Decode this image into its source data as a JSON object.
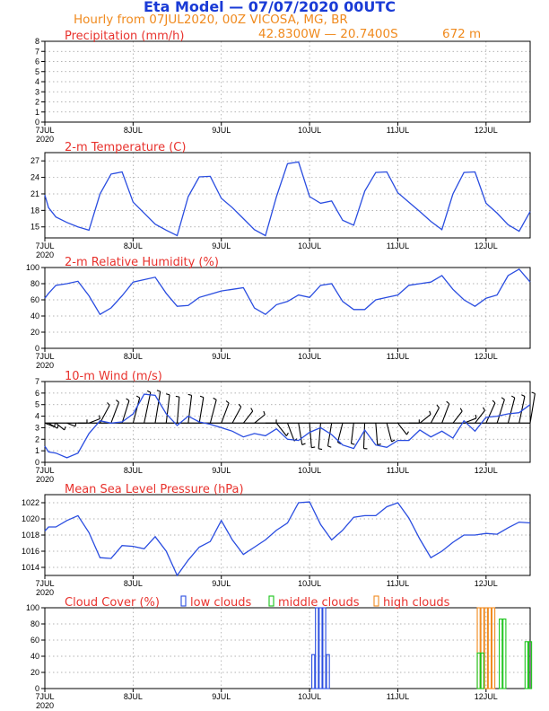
{
  "header": {
    "model_title": "Eta Model — 07/07/2020 00UTC",
    "hourly_line": "Hourly from 07JUL2020, 00Z   VICOSA, MG, BR",
    "coords_line": "42.8300W  —  20.7400S",
    "elevation": "672  m"
  },
  "colors": {
    "frame": "#000000",
    "grid": "#9a9a9a",
    "title_red": "#e8322d",
    "line_blue": "#2a4de0",
    "low_clouds": "#2a4de0",
    "middle_clouds": "#19c419",
    "high_clouds": "#f08a1e"
  },
  "x_axis": {
    "day_labels": [
      "7JUL",
      "8JUL",
      "9JUL",
      "10JUL",
      "11JUL",
      "12JUL"
    ],
    "year_label": "2020",
    "range_hours": [
      0,
      132
    ]
  },
  "chart_data": [
    {
      "id": "precip",
      "type": "line",
      "title": "Precipitation (mm/h)",
      "ylim": [
        0,
        8
      ],
      "yticks": [
        0,
        1,
        2,
        3,
        4,
        5,
        6,
        7,
        8
      ],
      "hgrid": [
        1,
        2,
        3,
        4,
        5,
        6,
        7
      ],
      "x": [],
      "values": []
    },
    {
      "id": "temp",
      "type": "line",
      "title": "2-m Temperature (C)",
      "ylim": [
        13,
        28.5
      ],
      "yticks": [
        15,
        18,
        21,
        24,
        27
      ],
      "hgrid": [
        15,
        18,
        21,
        24,
        27
      ],
      "x": [
        0,
        1,
        3,
        6,
        9,
        12,
        15,
        18,
        21,
        24,
        27,
        30,
        33,
        36,
        39,
        42,
        45,
        48,
        51,
        54,
        57,
        60,
        63,
        66,
        69,
        72,
        75,
        78,
        81,
        84,
        87,
        90,
        93,
        96,
        99,
        102,
        105,
        108,
        111,
        114,
        117,
        120,
        123,
        126,
        129,
        132
      ],
      "values": [
        20.8,
        18.5,
        16.8,
        15.8,
        15.0,
        14.4,
        21.0,
        24.6,
        25.0,
        19.5,
        17.5,
        15.5,
        14.4,
        13.4,
        20.5,
        24.1,
        24.2,
        20.2,
        18.5,
        16.5,
        14.5,
        13.4,
        20.5,
        26.5,
        26.8,
        20.5,
        19.3,
        19.7,
        16.2,
        15.3,
        21.5,
        24.9,
        25.0,
        21.2,
        19.5,
        17.8,
        16.0,
        14.5,
        21.0,
        24.9,
        25.0,
        19.3,
        17.5,
        15.4,
        14.2,
        17.8
      ]
    },
    {
      "id": "rh",
      "type": "line",
      "title": "2-m Relative Humidity (%)",
      "ylim": [
        0,
        100
      ],
      "yticks": [
        0,
        20,
        40,
        60,
        80,
        100
      ],
      "hgrid": [
        20,
        40,
        60,
        80
      ],
      "x": [
        0,
        1,
        3,
        6,
        9,
        12,
        15,
        18,
        21,
        24,
        27,
        30,
        33,
        36,
        39,
        42,
        45,
        48,
        51,
        54,
        57,
        60,
        63,
        66,
        69,
        72,
        75,
        78,
        81,
        84,
        87,
        90,
        93,
        96,
        99,
        102,
        105,
        108,
        111,
        114,
        117,
        120,
        123,
        126,
        129,
        132
      ],
      "values": [
        62,
        68,
        78,
        80,
        83,
        65,
        42,
        50,
        65,
        82,
        85,
        88,
        68,
        52,
        53,
        63,
        67,
        71,
        73,
        75,
        50,
        42,
        54,
        58,
        66,
        63,
        78,
        80,
        58,
        48,
        48,
        60,
        63,
        66,
        78,
        80,
        82,
        90,
        73,
        60,
        52,
        62,
        66,
        90,
        98,
        82
      ]
    },
    {
      "id": "wind",
      "type": "line",
      "title": "10-m Wind (m/s)",
      "ylim": [
        0,
        7
      ],
      "yticks": [
        0,
        1,
        2,
        3,
        4,
        5,
        6,
        7
      ],
      "hgrid": [
        1,
        2,
        3,
        4,
        5,
        6
      ],
      "barb_baseline": 3.4,
      "x": [
        0,
        1,
        3,
        6,
        9,
        12,
        15,
        18,
        21,
        24,
        27,
        30,
        33,
        36,
        39,
        42,
        45,
        48,
        51,
        54,
        57,
        60,
        63,
        66,
        69,
        72,
        75,
        78,
        81,
        84,
        87,
        90,
        93,
        96,
        99,
        102,
        105,
        108,
        111,
        114,
        117,
        120,
        123,
        126,
        129,
        132
      ],
      "values": [
        1.4,
        0.9,
        0.8,
        0.4,
        0.8,
        2.5,
        3.6,
        3.4,
        3.5,
        4.2,
        5.9,
        5.8,
        4.2,
        3.2,
        4.0,
        3.5,
        3.3,
        3.0,
        2.7,
        2.2,
        2.5,
        2.3,
        2.9,
        2.0,
        1.9,
        2.6,
        3.0,
        2.4,
        1.5,
        1.2,
        2.8,
        1.5,
        1.3,
        1.9,
        1.9,
        2.8,
        2.2,
        2.7,
        2.1,
        3.6,
        2.7,
        3.9,
        4.0,
        4.2,
        4.3,
        5.0
      ],
      "direction_deg": [
        80,
        75,
        70,
        80,
        90,
        100,
        130,
        140,
        145,
        150,
        155,
        160,
        165,
        170,
        165,
        160,
        150,
        140,
        130,
        120,
        110,
        90,
        60,
        40,
        20,
        10,
        350,
        340,
        330,
        345,
        355,
        10,
        30,
        60,
        90,
        110,
        130,
        140,
        120,
        100,
        120,
        135,
        145,
        150,
        155,
        160
      ]
    },
    {
      "id": "mslp",
      "type": "line",
      "title": "Mean Sea Level Pressure (hPa)",
      "ylim": [
        1013,
        1023
      ],
      "yticks": [
        1014,
        1016,
        1018,
        1020,
        1022
      ],
      "hgrid": [
        1014,
        1016,
        1018,
        1020,
        1022
      ],
      "x": [
        0,
        1,
        3,
        6,
        9,
        12,
        15,
        18,
        21,
        24,
        27,
        30,
        33,
        36,
        39,
        42,
        45,
        48,
        51,
        54,
        57,
        60,
        63,
        66,
        69,
        72,
        75,
        78,
        81,
        84,
        87,
        90,
        93,
        96,
        99,
        102,
        105,
        108,
        111,
        114,
        117,
        120,
        123,
        126,
        129,
        132
      ],
      "values": [
        1018.5,
        1019.0,
        1019.0,
        1019.8,
        1020.4,
        1018.3,
        1015.2,
        1015.1,
        1016.7,
        1016.6,
        1016.3,
        1017.8,
        1016.0,
        1013.0,
        1014.9,
        1016.5,
        1017.2,
        1019.8,
        1017.4,
        1015.6,
        1016.5,
        1017.4,
        1018.6,
        1019.5,
        1022.0,
        1022.1,
        1019.3,
        1017.4,
        1018.6,
        1020.2,
        1020.4,
        1020.4,
        1021.5,
        1022.0,
        1020.1,
        1017.5,
        1015.2,
        1016.0,
        1017.1,
        1018.0,
        1018.0,
        1018.2,
        1018.1,
        1018.9,
        1019.6,
        1019.5
      ]
    },
    {
      "id": "cloud",
      "type": "bar",
      "title": "Cloud Cover (%)",
      "legend": {
        "low": "low clouds",
        "middle": "middle clouds",
        "high": "high clouds"
      },
      "ylim": [
        0,
        100
      ],
      "yticks": [
        0,
        20,
        40,
        60,
        80,
        100
      ],
      "hgrid": [
        20,
        40,
        60,
        80
      ],
      "low": {
        "x": [
          73,
          74,
          75,
          76,
          77
        ],
        "values": [
          42,
          100,
          100,
          100,
          42
        ]
      },
      "middle": {
        "x": [
          118,
          119,
          124,
          125,
          131,
          132
        ],
        "values": [
          44,
          44,
          86,
          86,
          58,
          58
        ]
      },
      "high": {
        "x": [
          118,
          119,
          120,
          121,
          122
        ],
        "values": [
          100,
          100,
          100,
          100,
          100
        ]
      }
    }
  ]
}
